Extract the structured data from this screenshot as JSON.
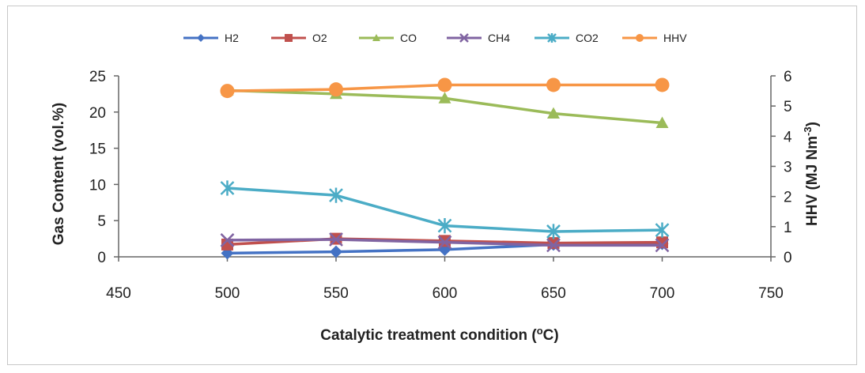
{
  "chart_data": {
    "type": "line",
    "title": "",
    "xlabel": "Catalytic treatment condition (",
    "xlabel_sup": "o",
    "xlabel_end": "C)",
    "ylabel": "Gas Content (vol.%)",
    "y2label": "HHV (MJ Nm",
    "y2label_sup": "-3",
    "y2label_end": ")",
    "xlim": [
      450,
      750
    ],
    "ylim": [
      0,
      25
    ],
    "y2lim": [
      0,
      6
    ],
    "xticks": [
      "450",
      "500",
      "550",
      "600",
      "650",
      "700",
      "750"
    ],
    "yticks": [
      "0",
      "5",
      "10",
      "15",
      "20",
      "25"
    ],
    "y2ticks": [
      "0",
      "1",
      "2",
      "3",
      "4",
      "5",
      "6"
    ],
    "legend_position": "top",
    "grid": false,
    "x": [
      500,
      550,
      600,
      650,
      700
    ],
    "series": [
      {
        "name": "H2",
        "color": "#4472C4",
        "marker": "diamond",
        "axis": "left",
        "values": [
          0.5,
          0.7,
          1.0,
          1.7,
          1.8
        ]
      },
      {
        "name": "O2",
        "color": "#C0504D",
        "marker": "square",
        "axis": "left",
        "values": [
          1.7,
          2.5,
          2.2,
          1.9,
          2.0
        ]
      },
      {
        "name": "CO",
        "color": "#9BBB59",
        "marker": "triangle",
        "axis": "left",
        "values": [
          23.0,
          22.5,
          21.9,
          19.8,
          18.5
        ]
      },
      {
        "name": "CH4",
        "color": "#8064A2",
        "marker": "x",
        "axis": "left",
        "values": [
          2.3,
          2.4,
          2.0,
          1.6,
          1.6
        ]
      },
      {
        "name": "CO2",
        "color": "#4BACC6",
        "marker": "star",
        "axis": "left",
        "values": [
          9.5,
          8.5,
          4.3,
          3.5,
          3.7
        ]
      },
      {
        "name": "HHV",
        "color": "#F79646",
        "marker": "circle",
        "axis": "right",
        "values": [
          5.5,
          5.55,
          5.7,
          5.7,
          5.7
        ]
      }
    ]
  }
}
